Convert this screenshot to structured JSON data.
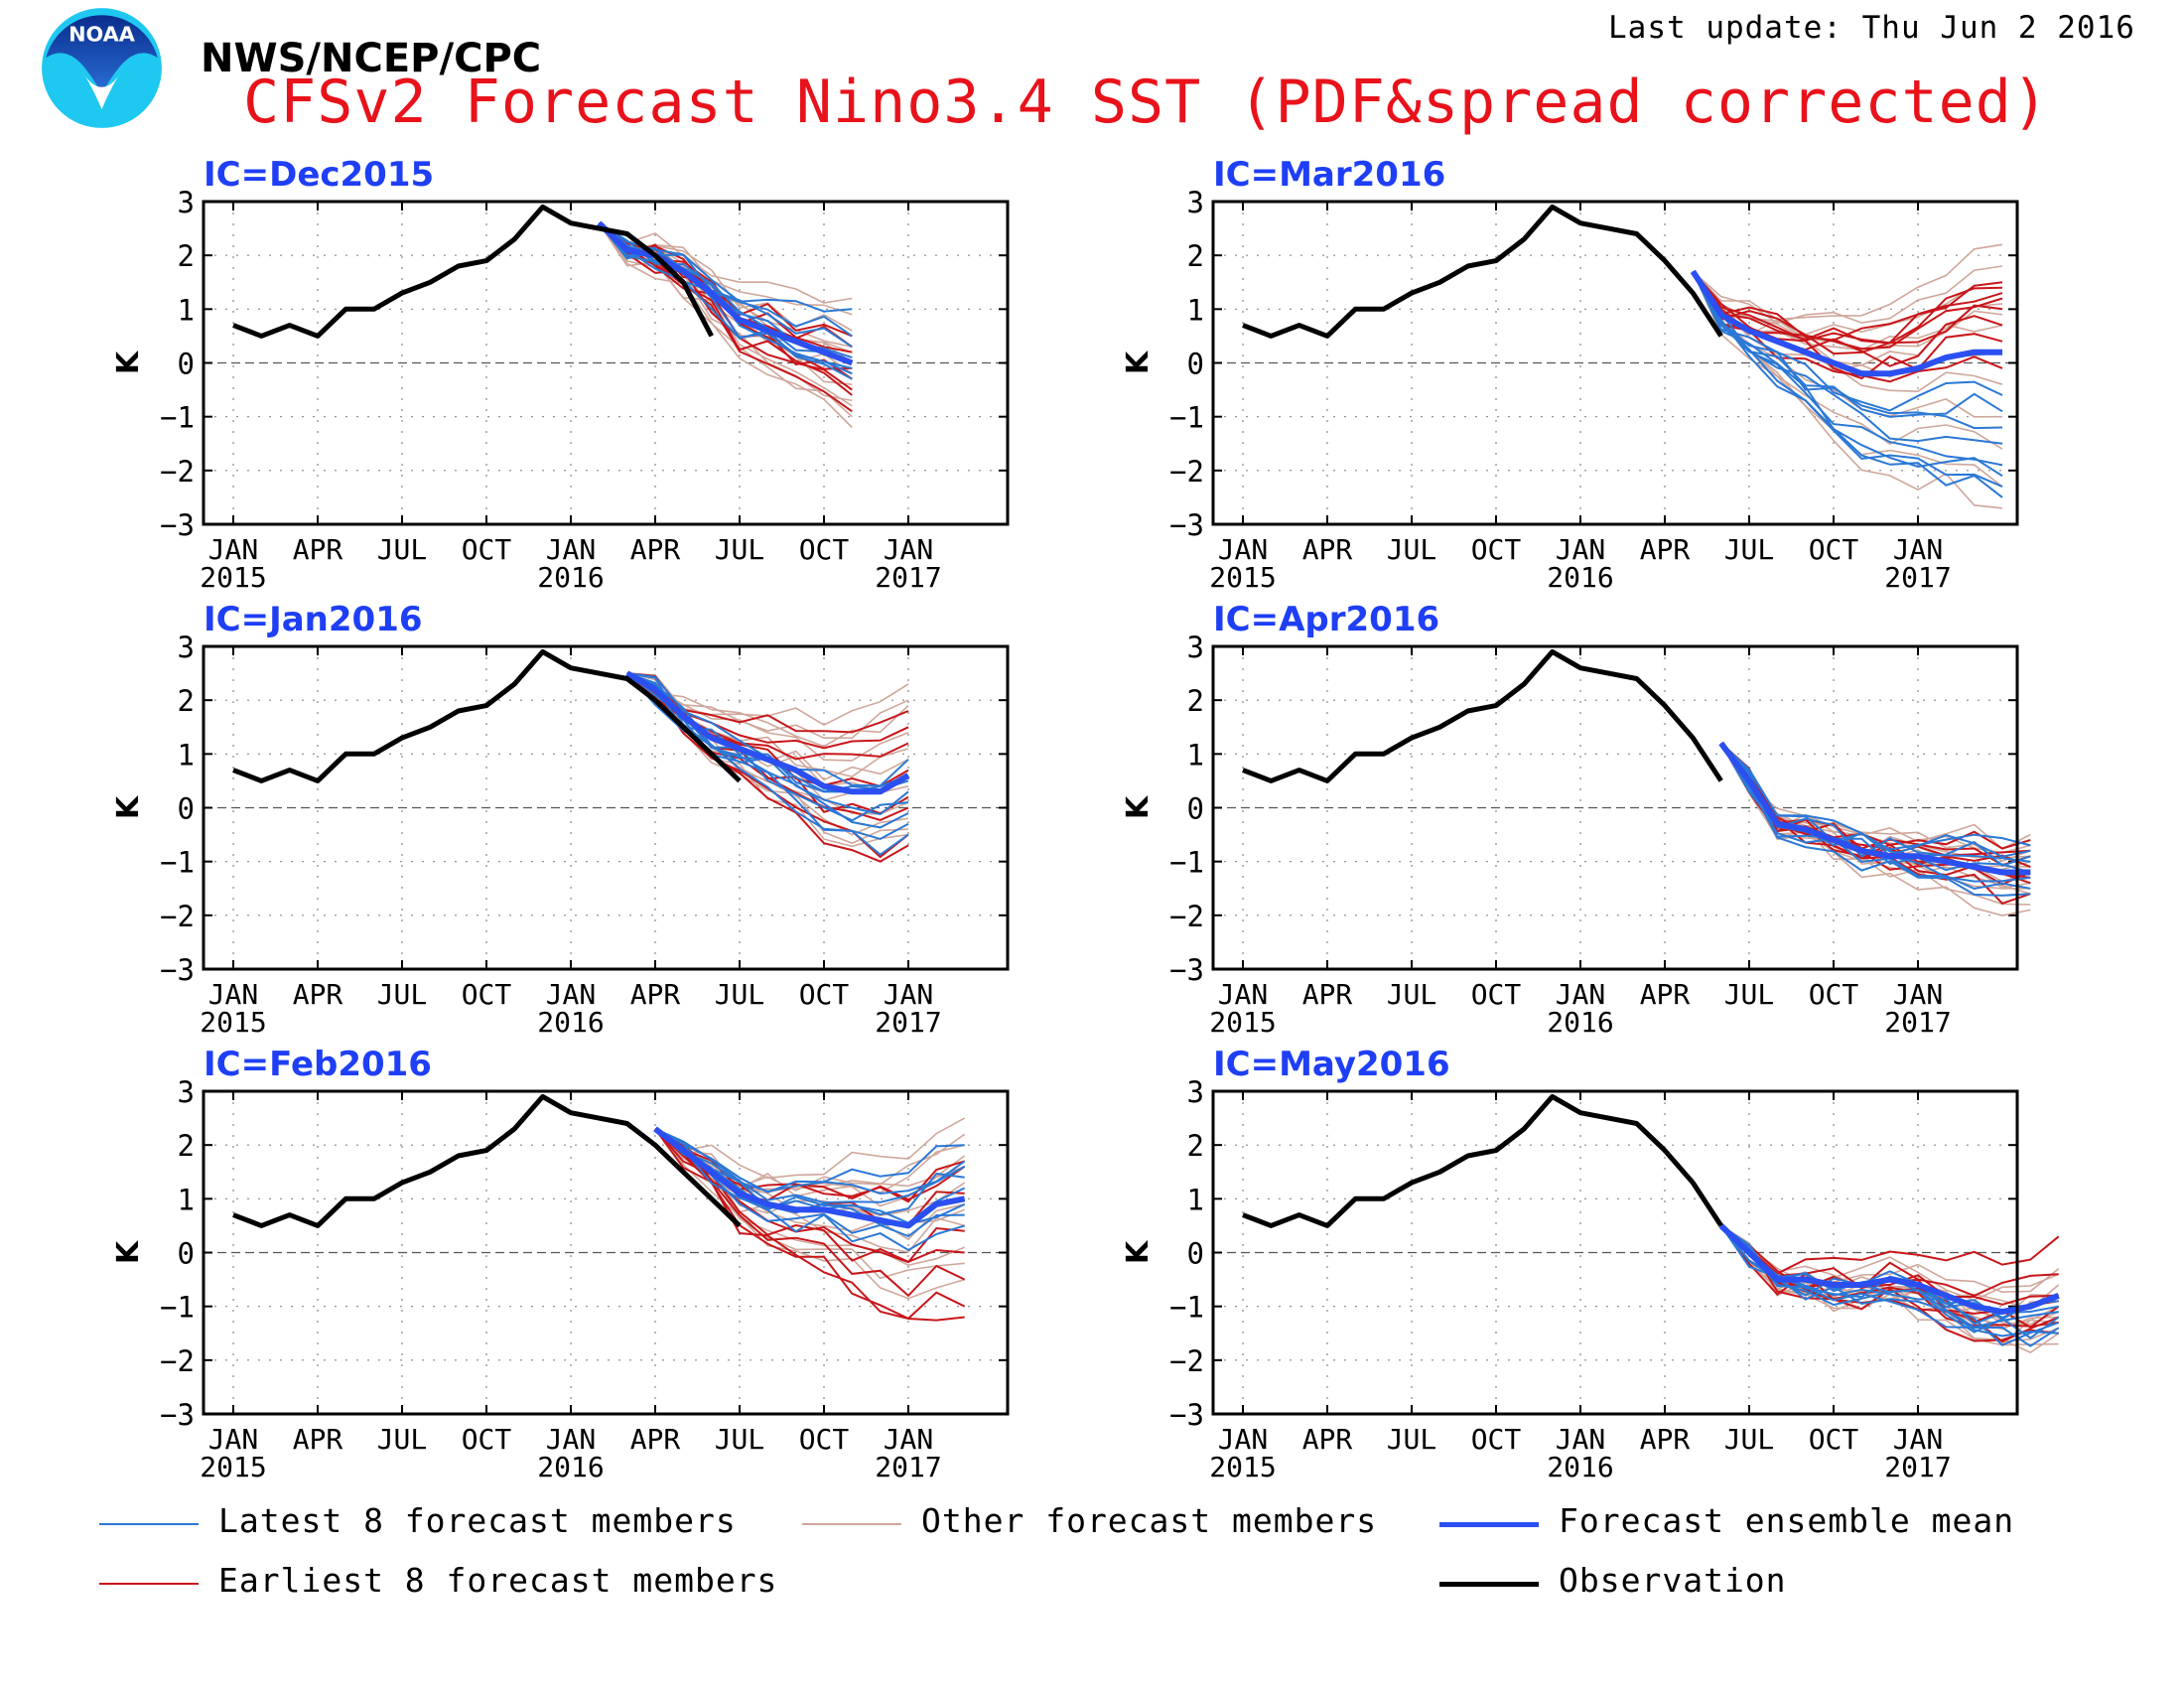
{
  "header": {
    "logo_text": "NOAA",
    "agency": "NWS/NCEP/CPC",
    "title": "CFSv2 Forecast Nino3.4 SST (PDF&spread corrected)",
    "last_update": "Last update: Thu Jun 2 2016"
  },
  "colors": {
    "title": "#e8121b",
    "panel_title": "#1e3ff5",
    "latest": "#2b78d6",
    "earliest": "#c8161a",
    "other": "#cfa79b",
    "mean": "#2b4ff0",
    "observation": "#000000"
  },
  "legend": [
    {
      "key": "latest",
      "label": "Latest 8 forecast members"
    },
    {
      "key": "other",
      "label": "Other forecast members"
    },
    {
      "key": "mean",
      "label": "Forecast ensemble mean"
    },
    {
      "key": "earliest",
      "label": "Earliest 8 forecast members"
    },
    {
      "key": "observation",
      "label": "Observation"
    }
  ],
  "chart_data": [
    {
      "type": "line",
      "title": "IC=Dec2015",
      "ylabel": "K",
      "ylim": [
        -3,
        3
      ],
      "yticks": [
        "3",
        "2",
        "1",
        "0",
        "−1",
        "−2",
        "−3"
      ],
      "xticks_month": [
        "JAN",
        "APR",
        "JUL",
        "OCT",
        "JAN",
        "APR",
        "JUL",
        "OCT",
        "JAN"
      ],
      "xticks_year": [
        "2015",
        "",
        "",
        "",
        "2016",
        "",
        "",
        "",
        "2017"
      ],
      "observation": [
        0.7,
        0.5,
        0.7,
        0.5,
        1.0,
        1.0,
        1.3,
        1.5,
        1.8,
        1.9,
        2.3,
        2.9,
        2.6,
        2.5,
        2.4,
        2.0,
        1.5,
        0.5
      ],
      "ensemble_mean": {
        "start_month": 13,
        "values": [
          2.6,
          2.1,
          2.0,
          1.7,
          1.3,
          0.8,
          0.6,
          0.4,
          0.2,
          0.0
        ]
      },
      "latest_8": {
        "start_month": 13,
        "ends": [
          1.0,
          0.3,
          -0.1,
          -0.3,
          0.1,
          0.0,
          -0.2,
          0.5
        ]
      },
      "earliest_8": {
        "start_month": 13,
        "ends": [
          -0.9,
          -0.3,
          0.5,
          0.2,
          -0.5,
          -0.1,
          0.3,
          -0.6
        ]
      },
      "other": {
        "start_month": 13,
        "ends": [
          -1.2,
          -1.0,
          -0.7,
          -0.4,
          0.0,
          0.3,
          0.6,
          0.9,
          1.2,
          -0.8,
          0.2,
          -0.2
        ]
      }
    },
    {
      "type": "line",
      "title": "IC=Jan2016",
      "ylabel": "K",
      "ylim": [
        -3,
        3
      ],
      "yticks": [
        "3",
        "2",
        "1",
        "0",
        "−1",
        "−2",
        "−3"
      ],
      "xticks_month": [
        "JAN",
        "APR",
        "JUL",
        "OCT",
        "JAN",
        "APR",
        "JUL",
        "OCT",
        "JAN"
      ],
      "xticks_year": [
        "2015",
        "",
        "",
        "",
        "2016",
        "",
        "",
        "",
        "2017"
      ],
      "observation": [
        0.7,
        0.5,
        0.7,
        0.5,
        1.0,
        1.0,
        1.3,
        1.5,
        1.8,
        1.9,
        2.3,
        2.9,
        2.6,
        2.5,
        2.4,
        2.0,
        1.5,
        1.0,
        0.5
      ],
      "ensemble_mean": {
        "start_month": 14,
        "values": [
          2.5,
          2.2,
          1.7,
          1.3,
          1.1,
          0.9,
          0.7,
          0.4,
          0.3,
          0.3,
          0.6
        ]
      },
      "latest_8": {
        "start_month": 14,
        "ends": [
          0.6,
          -0.3,
          0.1,
          0.5,
          -0.5,
          0.9,
          0.3,
          -0.1
        ]
      },
      "earliest_8": {
        "start_month": 14,
        "ends": [
          1.8,
          1.2,
          0.7,
          0.0,
          -0.5,
          -0.7,
          0.2,
          1.5
        ]
      },
      "other": {
        "start_month": 14,
        "ends": [
          2.3,
          1.9,
          1.4,
          0.9,
          0.4,
          -0.2,
          -0.5,
          1.1,
          0.1,
          2.0,
          0.7,
          -0.4
        ]
      }
    },
    {
      "type": "line",
      "title": "IC=Feb2016",
      "ylabel": "K",
      "ylim": [
        -3,
        3
      ],
      "yticks": [
        "3",
        "2",
        "1",
        "0",
        "−1",
        "−2",
        "−3"
      ],
      "xticks_month": [
        "JAN",
        "APR",
        "JUL",
        "OCT",
        "JAN",
        "APR",
        "JUL",
        "OCT",
        "JAN"
      ],
      "xticks_year": [
        "2015",
        "",
        "",
        "",
        "2016",
        "",
        "",
        "",
        "2017"
      ],
      "observation": [
        0.7,
        0.5,
        0.7,
        0.5,
        1.0,
        1.0,
        1.3,
        1.5,
        1.8,
        1.9,
        2.3,
        2.9,
        2.6,
        2.5,
        2.4,
        2.0,
        1.5,
        1.0,
        0.5
      ],
      "ensemble_mean": {
        "start_month": 15,
        "values": [
          2.3,
          1.9,
          1.5,
          1.1,
          0.9,
          0.8,
          0.8,
          0.7,
          0.6,
          0.5,
          0.9,
          1.0
        ]
      },
      "latest_8": {
        "start_month": 15,
        "ends": [
          1.7,
          1.6,
          0.5,
          1.2,
          2.0,
          0.9,
          1.4,
          0.7
        ]
      },
      "earliest_8": {
        "start_month": 15,
        "ends": [
          -1.2,
          -1.0,
          0.0,
          1.7,
          1.1,
          0.4,
          -0.5,
          1.6
        ]
      },
      "other": {
        "start_month": 15,
        "ends": [
          2.5,
          2.2,
          1.8,
          1.3,
          0.9,
          0.5,
          0.1,
          -0.2,
          1.6,
          0.8,
          2.0,
          -0.5
        ]
      }
    },
    {
      "type": "line",
      "title": "IC=Mar2016",
      "ylabel": "K",
      "ylim": [
        -3,
        3
      ],
      "yticks": [
        "3",
        "2",
        "1",
        "0",
        "−1",
        "−2",
        "−3"
      ],
      "xticks_month": [
        "JAN",
        "APR",
        "JUL",
        "OCT",
        "JAN",
        "APR",
        "JUL",
        "OCT",
        "JAN"
      ],
      "xticks_year": [
        "2015",
        "",
        "",
        "",
        "2016",
        "",
        "",
        "",
        "2017"
      ],
      "observation": [
        0.7,
        0.5,
        0.7,
        0.5,
        1.0,
        1.0,
        1.3,
        1.5,
        1.8,
        1.9,
        2.3,
        2.9,
        2.6,
        2.5,
        2.4,
        1.9,
        1.3,
        0.5
      ],
      "ensemble_mean": {
        "start_month": 16,
        "values": [
          1.7,
          0.9,
          0.6,
          0.4,
          0.2,
          0.0,
          -0.2,
          -0.2,
          -0.1,
          0.1,
          0.2,
          0.2
        ]
      },
      "latest_8": {
        "start_month": 16,
        "ends": [
          -2.5,
          -2.1,
          -1.9,
          -1.2,
          -0.6,
          -2.3,
          -1.5,
          -0.9
        ]
      },
      "earliest_8": {
        "start_month": 16,
        "ends": [
          1.4,
          1.3,
          1.0,
          0.4,
          -0.1,
          1.5,
          0.7,
          1.2
        ]
      },
      "other": {
        "start_month": 16,
        "ends": [
          2.2,
          1.8,
          1.5,
          1.1,
          0.7,
          0.2,
          -0.4,
          -1.0,
          -1.6,
          -2.3,
          -2.7,
          0.9
        ]
      }
    },
    {
      "type": "line",
      "title": "IC=Apr2016",
      "ylabel": "K",
      "ylim": [
        -3,
        3
      ],
      "yticks": [
        "3",
        "2",
        "1",
        "0",
        "−1",
        "−2",
        "−3"
      ],
      "xticks_month": [
        "JAN",
        "APR",
        "JUL",
        "OCT",
        "JAN",
        "APR",
        "JUL",
        "OCT",
        "JAN"
      ],
      "xticks_year": [
        "2015",
        "",
        "",
        "",
        "2016",
        "",
        "",
        "",
        "2017"
      ],
      "observation": [
        0.7,
        0.5,
        0.7,
        0.5,
        1.0,
        1.0,
        1.3,
        1.5,
        1.8,
        1.9,
        2.3,
        2.9,
        2.6,
        2.5,
        2.4,
        1.9,
        1.3,
        0.5
      ],
      "ensemble_mean": {
        "start_month": 17,
        "values": [
          1.2,
          0.5,
          -0.3,
          -0.4,
          -0.6,
          -0.8,
          -0.9,
          -0.9,
          -1.0,
          -1.1,
          -1.2,
          -1.2
        ]
      },
      "latest_8": {
        "start_month": 17,
        "ends": [
          -1.0,
          -1.3,
          -1.6,
          -0.9,
          -0.7,
          -1.2,
          -1.5,
          -0.8
        ]
      },
      "earliest_8": {
        "start_month": 17,
        "ends": [
          -0.6,
          -1.4,
          -1.2,
          -0.9,
          -1.6,
          -0.8,
          -1.1,
          -1.3
        ]
      },
      "other": {
        "start_month": 17,
        "ends": [
          -0.5,
          -0.8,
          -1.0,
          -1.2,
          -1.4,
          -1.6,
          -1.8,
          -1.9,
          -0.7,
          -1.1,
          -1.5,
          -0.9
        ]
      }
    },
    {
      "type": "line",
      "title": "IC=May2016",
      "ylabel": "K",
      "ylim": [
        -3,
        3
      ],
      "yticks": [
        "3",
        "2",
        "1",
        "0",
        "−1",
        "−2",
        "−3"
      ],
      "xticks_month": [
        "JAN",
        "APR",
        "JUL",
        "OCT",
        "JAN",
        "APR",
        "JUL",
        "OCT",
        "JAN"
      ],
      "xticks_year": [
        "2015",
        "",
        "",
        "",
        "2016",
        "",
        "",
        "",
        "2017"
      ],
      "observation": [
        0.7,
        0.5,
        0.7,
        0.5,
        1.0,
        1.0,
        1.3,
        1.5,
        1.8,
        1.9,
        2.3,
        2.9,
        2.6,
        2.5,
        2.4,
        1.9,
        1.3,
        0.5
      ],
      "ensemble_mean": {
        "start_month": 17,
        "values": [
          0.5,
          0.0,
          -0.5,
          -0.5,
          -0.6,
          -0.6,
          -0.5,
          -0.6,
          -0.8,
          -1.0,
          -1.1,
          -1.0,
          -0.8
        ]
      },
      "latest_8": {
        "start_month": 17,
        "ends": [
          -0.9,
          -1.1,
          -1.3,
          -1.0,
          -1.2,
          -1.4,
          -1.5,
          -0.8
        ]
      },
      "earliest_8": {
        "start_month": 17,
        "ends": [
          0.3,
          -0.4,
          -0.9,
          -1.2,
          -1.5,
          -1.3,
          -1.0,
          -0.8
        ]
      },
      "other": {
        "start_month": 17,
        "ends": [
          -0.3,
          -0.6,
          -0.9,
          -1.1,
          -1.3,
          -1.5,
          -1.7,
          -0.4,
          -0.8,
          -1.2,
          -1.0,
          -1.4
        ]
      }
    }
  ]
}
